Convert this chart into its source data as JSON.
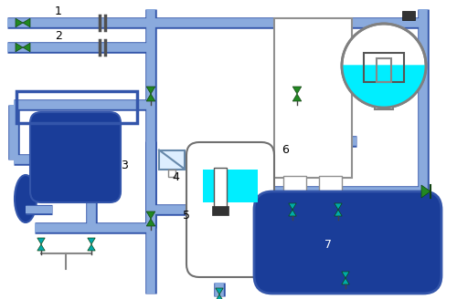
{
  "bg_color": "#ffffff",
  "pipe_color": "#8aaadd",
  "pipe_outline_color": "#3355aa",
  "dark_blue": "#1a3d99",
  "valve_color": "#228822",
  "valve_color2": "#00aaaa",
  "cyan_fill": "#00eeff",
  "label_fontsize": 9,
  "pipe_lw": 7
}
